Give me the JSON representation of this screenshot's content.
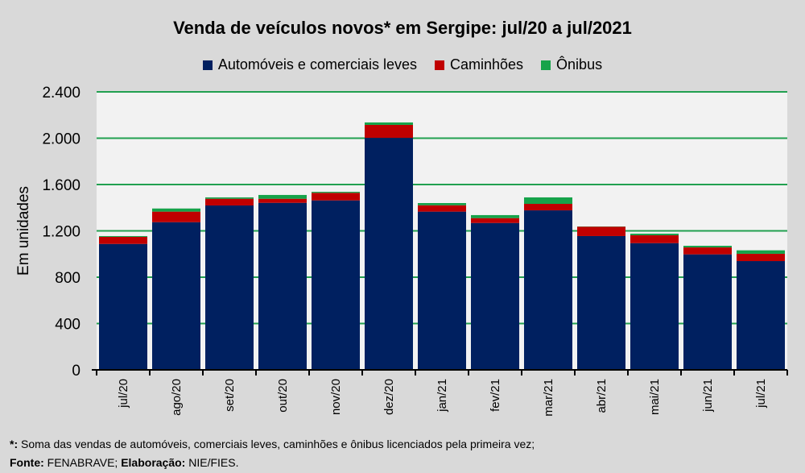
{
  "chart_data": {
    "type": "bar",
    "stacked": true,
    "title": "Venda de veículos novos* em Sergipe: jul/20 a jul/2021",
    "xlabel": "",
    "ylabel": "Em unidades",
    "ylim": [
      0,
      2400
    ],
    "yticks": [
      0,
      400,
      800,
      1200,
      1600,
      2000,
      2400
    ],
    "ytick_labels": [
      "0",
      "400",
      "800",
      "1.200",
      "1.600",
      "2.000",
      "2.400"
    ],
    "grid": true,
    "legend_position": "top",
    "categories": [
      "jul/20",
      "ago/20",
      "set/20",
      "out/20",
      "nov/20",
      "dez/20",
      "jan/21",
      "fev/21",
      "mar/21",
      "abr/21",
      "mai/21",
      "jun/21",
      "jul/21"
    ],
    "series": [
      {
        "name": "Automóveis e comerciais leves",
        "color": "#002060",
        "values": [
          1087,
          1275,
          1419,
          1442,
          1463,
          2003,
          1366,
          1268,
          1377,
          1155,
          1094,
          997,
          939
        ]
      },
      {
        "name": "Caminhões",
        "color": "#c00000",
        "values": [
          61,
          91,
          58,
          35,
          65,
          112,
          55,
          42,
          56,
          81,
          68,
          60,
          63
        ]
      },
      {
        "name": "Ônibus",
        "color": "#16a34a",
        "values": [
          7,
          27,
          12,
          33,
          9,
          21,
          19,
          26,
          56,
          2,
          14,
          14,
          30
        ]
      }
    ]
  },
  "footnote": {
    "star_label": "*:",
    "star_text": " Soma das vendas de automóveis, comerciais leves, caminhões e ônibus licenciados pela primeira vez;",
    "source_label": "Fonte:",
    "source_text": " FENABRAVE; ",
    "elab_label": "Elaboração:",
    "elab_text": " NIE/FIES."
  }
}
